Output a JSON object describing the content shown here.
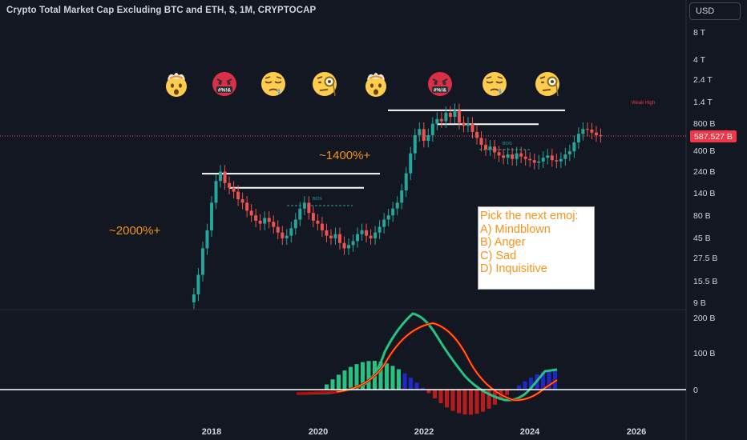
{
  "header": {
    "title": "Crypto Total Market Cap Excluding BTC and ETH, $, 1M, CRYPTOCAP",
    "currency_label": "USD"
  },
  "price_axis": {
    "ticks": [
      "8 T",
      "4 T",
      "2.4 T",
      "1.4 T",
      "800 B",
      "400 B",
      "240 B",
      "140 B",
      "80 B",
      "45 B",
      "27.5 B",
      "15.5 B",
      "9 B"
    ],
    "last_price_label": "587.527 B"
  },
  "osc_axis": {
    "ticks": [
      "200 B",
      "100 B",
      "0"
    ]
  },
  "x_axis": {
    "ticks": [
      "2018",
      "2020",
      "2022",
      "2024",
      "2026"
    ]
  },
  "annotations": {
    "gain_2017": "~2000%+",
    "gain_2020": "~1400%+",
    "weak_high": "Weak High",
    "bos": "BOS"
  },
  "quiz": {
    "lines": [
      "Pick the next emoj:",
      "A) Mindblown",
      "B) Anger",
      "C) Sad",
      "D) Inquisitive"
    ]
  },
  "emojis": [
    "mindblown-emoji",
    "anger-emoji",
    "sad-emoji",
    "inquisitive-emoji",
    "mindblown-emoji",
    "anger-emoji",
    "sad-emoji",
    "inquisitive-emoji"
  ],
  "colors": {
    "up": "#26a69a",
    "down": "#ef5350",
    "accent": "#f7931a",
    "background": "#131722"
  },
  "chart_data": [
    {
      "type": "candlestick",
      "title": "Crypto Total Market Cap Excluding BTC and ETH, $, 1M, CRYPTOCAP",
      "scale": "log",
      "ylim": [
        9000000000,
        8000000000000
      ],
      "x_range": [
        "2017-05",
        "2026-12"
      ],
      "last_value": 587527000000,
      "levels": [
        {
          "name": "white-line-2018",
          "value": 228,
          "unit": "B"
        },
        {
          "name": "white-line-2019",
          "value": 160,
          "unit": "B"
        },
        {
          "name": "white-line-2021",
          "value": 1120,
          "unit": "B"
        },
        {
          "name": "white-line-2022",
          "value": 790,
          "unit": "B"
        }
      ]
    },
    {
      "type": "line",
      "title": "",
      "ylim": [
        -120000000000,
        220000000000
      ],
      "series": [
        {
          "color": "#26c281",
          "peak_value": 210000000000,
          "peak_date": "2021-12"
        },
        {
          "color": "#f7931a",
          "peak_value": 185000000000,
          "peak_date": "2022-03"
        },
        {
          "color": "#d00000",
          "peak_value": 185000000000,
          "peak_date": "2022-03"
        }
      ]
    }
  ]
}
